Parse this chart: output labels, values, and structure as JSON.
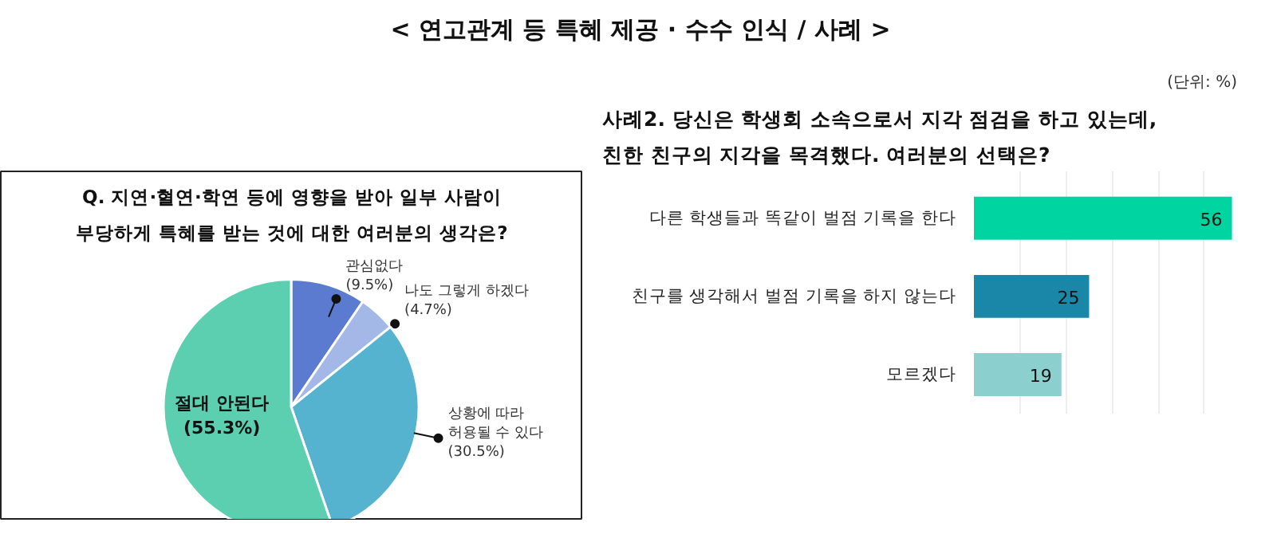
{
  "chart_data": [
    {
      "type": "pie",
      "title": "< 연고관계 등 특혜 제공 · 수수 인식 / 사례 >",
      "subtitle": "Q. 지연·혈연·학연 등에 영향을 받아 일부 사람이\n부당하게 특혜를 받는 것에 대한 여러분의 생각은?",
      "categories": [
        "관심없다",
        "나도 그렇게 하겠다",
        "상황에 따라\n허용될 수 있다",
        "절대 안된다"
      ],
      "values": [
        9.5,
        4.7,
        30.5,
        55.3
      ],
      "value_labels": [
        "(9.5%)",
        "(4.7%)",
        "(30.5%)",
        "(55.3%)"
      ],
      "colors": [
        "#5a7bd0",
        "#a3b8e6",
        "#55b3cf",
        "#5ccfb0"
      ]
    },
    {
      "type": "bar",
      "orientation": "horizontal",
      "title": "사례2. 당신은 학생회 소속으로서 지각 점검을 하고 있는데,\n친한 친구의 지각을 목격했다. 여러분의 선택은?",
      "annotations": [
        "(단위: %)"
      ],
      "categories": [
        "다른 학생들과 똑같이 벌점 기록을 한다",
        "친구를 생각해서 벌점 기록을 하지 않는다",
        "모르겠다"
      ],
      "values": [
        56,
        25,
        19
      ],
      "colors": [
        "#00d4a0",
        "#1a86a8",
        "#8ccfcf"
      ],
      "grid": "x",
      "tick_labels": false,
      "data_labels": true
    }
  ]
}
